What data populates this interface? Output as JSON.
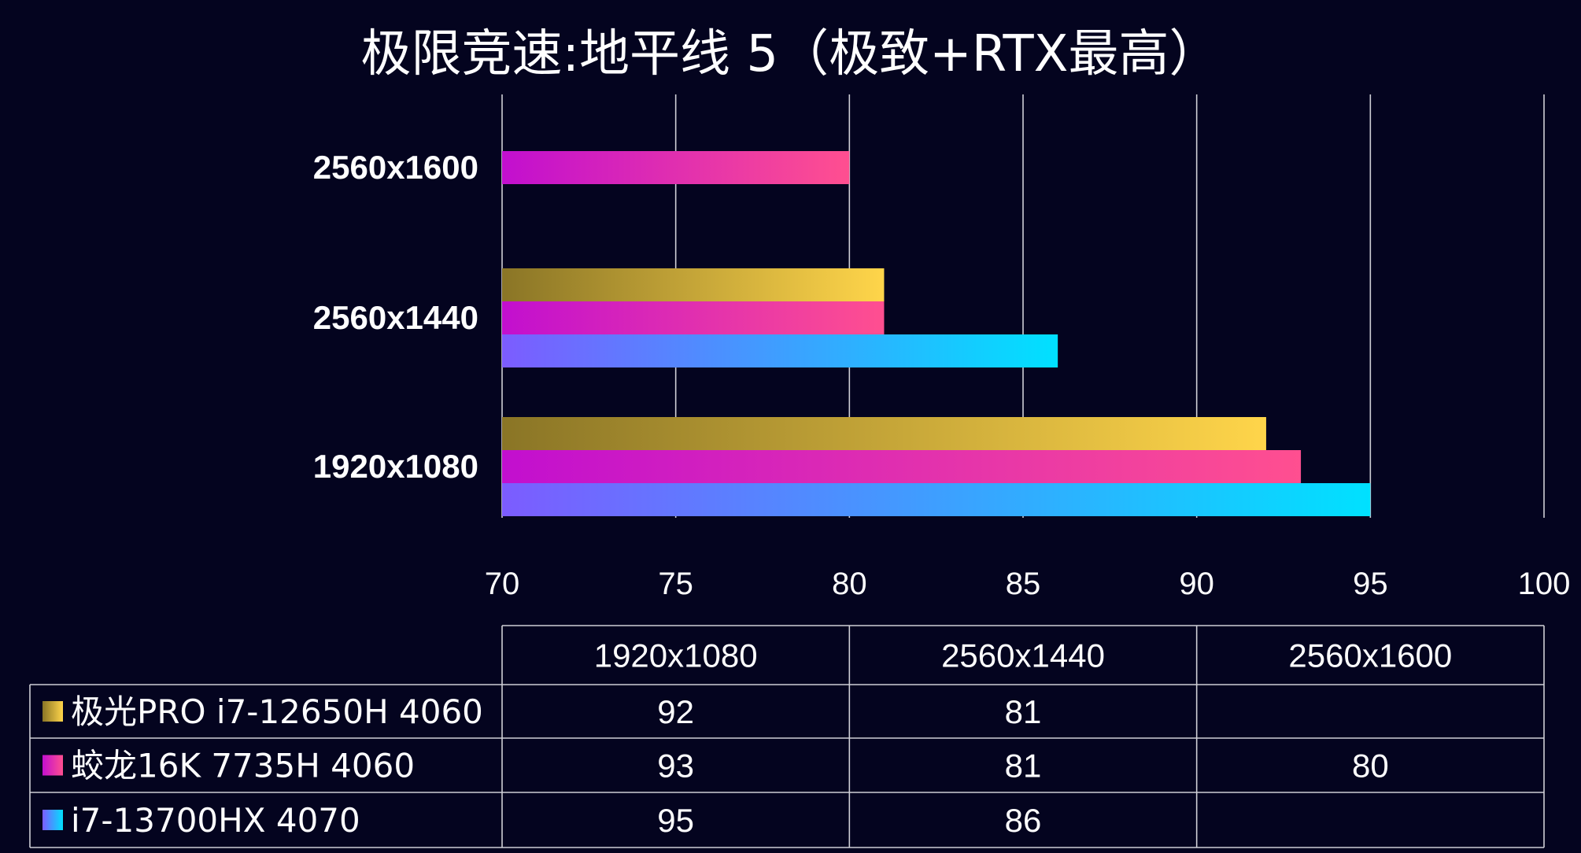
{
  "chart_data": {
    "type": "bar",
    "orientation": "horizontal",
    "title": "极限竞速:地平线 5（极致+RTX最高）",
    "categories": [
      "2560x1600",
      "2560x1440",
      "1920x1080"
    ],
    "table_columns": [
      "1920x1080",
      "2560x1440",
      "2560x1600"
    ],
    "series": [
      {
        "name": "极光PRO i7-12650H 4060",
        "values": {
          "1920x1080": 92,
          "2560x1440": 81,
          "2560x1600": null
        },
        "gradient": [
          "#8a7526",
          "#ffd54a"
        ]
      },
      {
        "name": "蛟龙16K 7735H 4060",
        "values": {
          "1920x1080": 93,
          "2560x1440": 81,
          "2560x1600": 80
        },
        "gradient": [
          "#c20fcf",
          "#ff4f90"
        ]
      },
      {
        "name": "i7-13700HX 4070",
        "values": {
          "1920x1080": 95,
          "2560x1440": 86,
          "2560x1600": null
        },
        "gradient": [
          "#7c5cff",
          "#00e1ff"
        ]
      }
    ],
    "xlim": [
      70,
      100
    ],
    "xticks": [
      70,
      75,
      80,
      85,
      90,
      95,
      100
    ],
    "grid": true,
    "legend_placement": "data-table-left"
  },
  "colors": {
    "background": "#04041f",
    "grid": "#cfcfd6",
    "text": "#ffffff"
  }
}
